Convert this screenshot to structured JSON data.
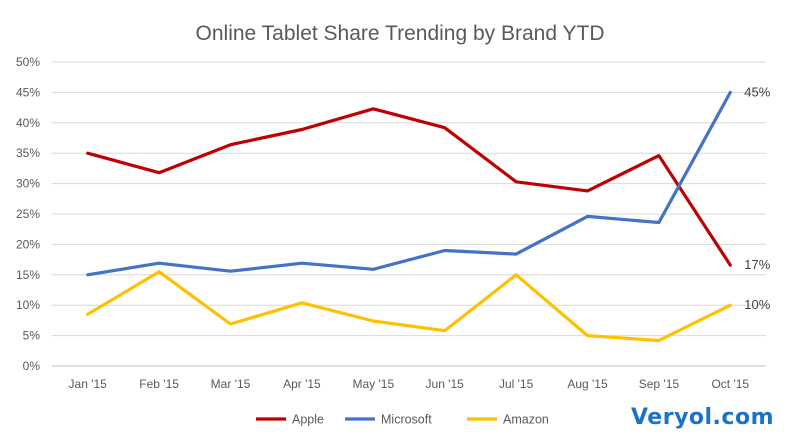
{
  "chart_data": {
    "type": "line",
    "title": "Online Tablet Share Trending by Brand YTD",
    "xlabel": "",
    "ylabel": "",
    "categories": [
      "Jan '15",
      "Feb '15",
      "Mar '15",
      "Apr '15",
      "May '15",
      "Jun '15",
      "Jul '15",
      "Aug '15",
      "Sep '15",
      "Oct '15"
    ],
    "y_ticks": [
      "0%",
      "5%",
      "10%",
      "15%",
      "20%",
      "25%",
      "30%",
      "35%",
      "40%",
      "45%",
      "50%"
    ],
    "ylim": [
      0,
      50
    ],
    "grid": true,
    "legend_position": "bottom",
    "series": [
      {
        "name": "Apple",
        "color": "#c00000",
        "values": [
          35,
          31.8,
          36.4,
          38.9,
          42.3,
          39.2,
          30.3,
          28.8,
          34.6,
          16.6
        ]
      },
      {
        "name": "Microsoft",
        "color": "#4472c4",
        "values": [
          15,
          16.9,
          15.6,
          16.9,
          15.9,
          19,
          18.4,
          24.6,
          23.6,
          45
        ]
      },
      {
        "name": "Amazon",
        "color": "#ffc000",
        "values": [
          8.5,
          15.5,
          6.9,
          10.4,
          7.4,
          5.8,
          15,
          5,
          4.2,
          10
        ]
      }
    ],
    "end_labels": [
      "17%",
      "45%",
      "10%"
    ]
  },
  "watermark": "Veryol.com"
}
